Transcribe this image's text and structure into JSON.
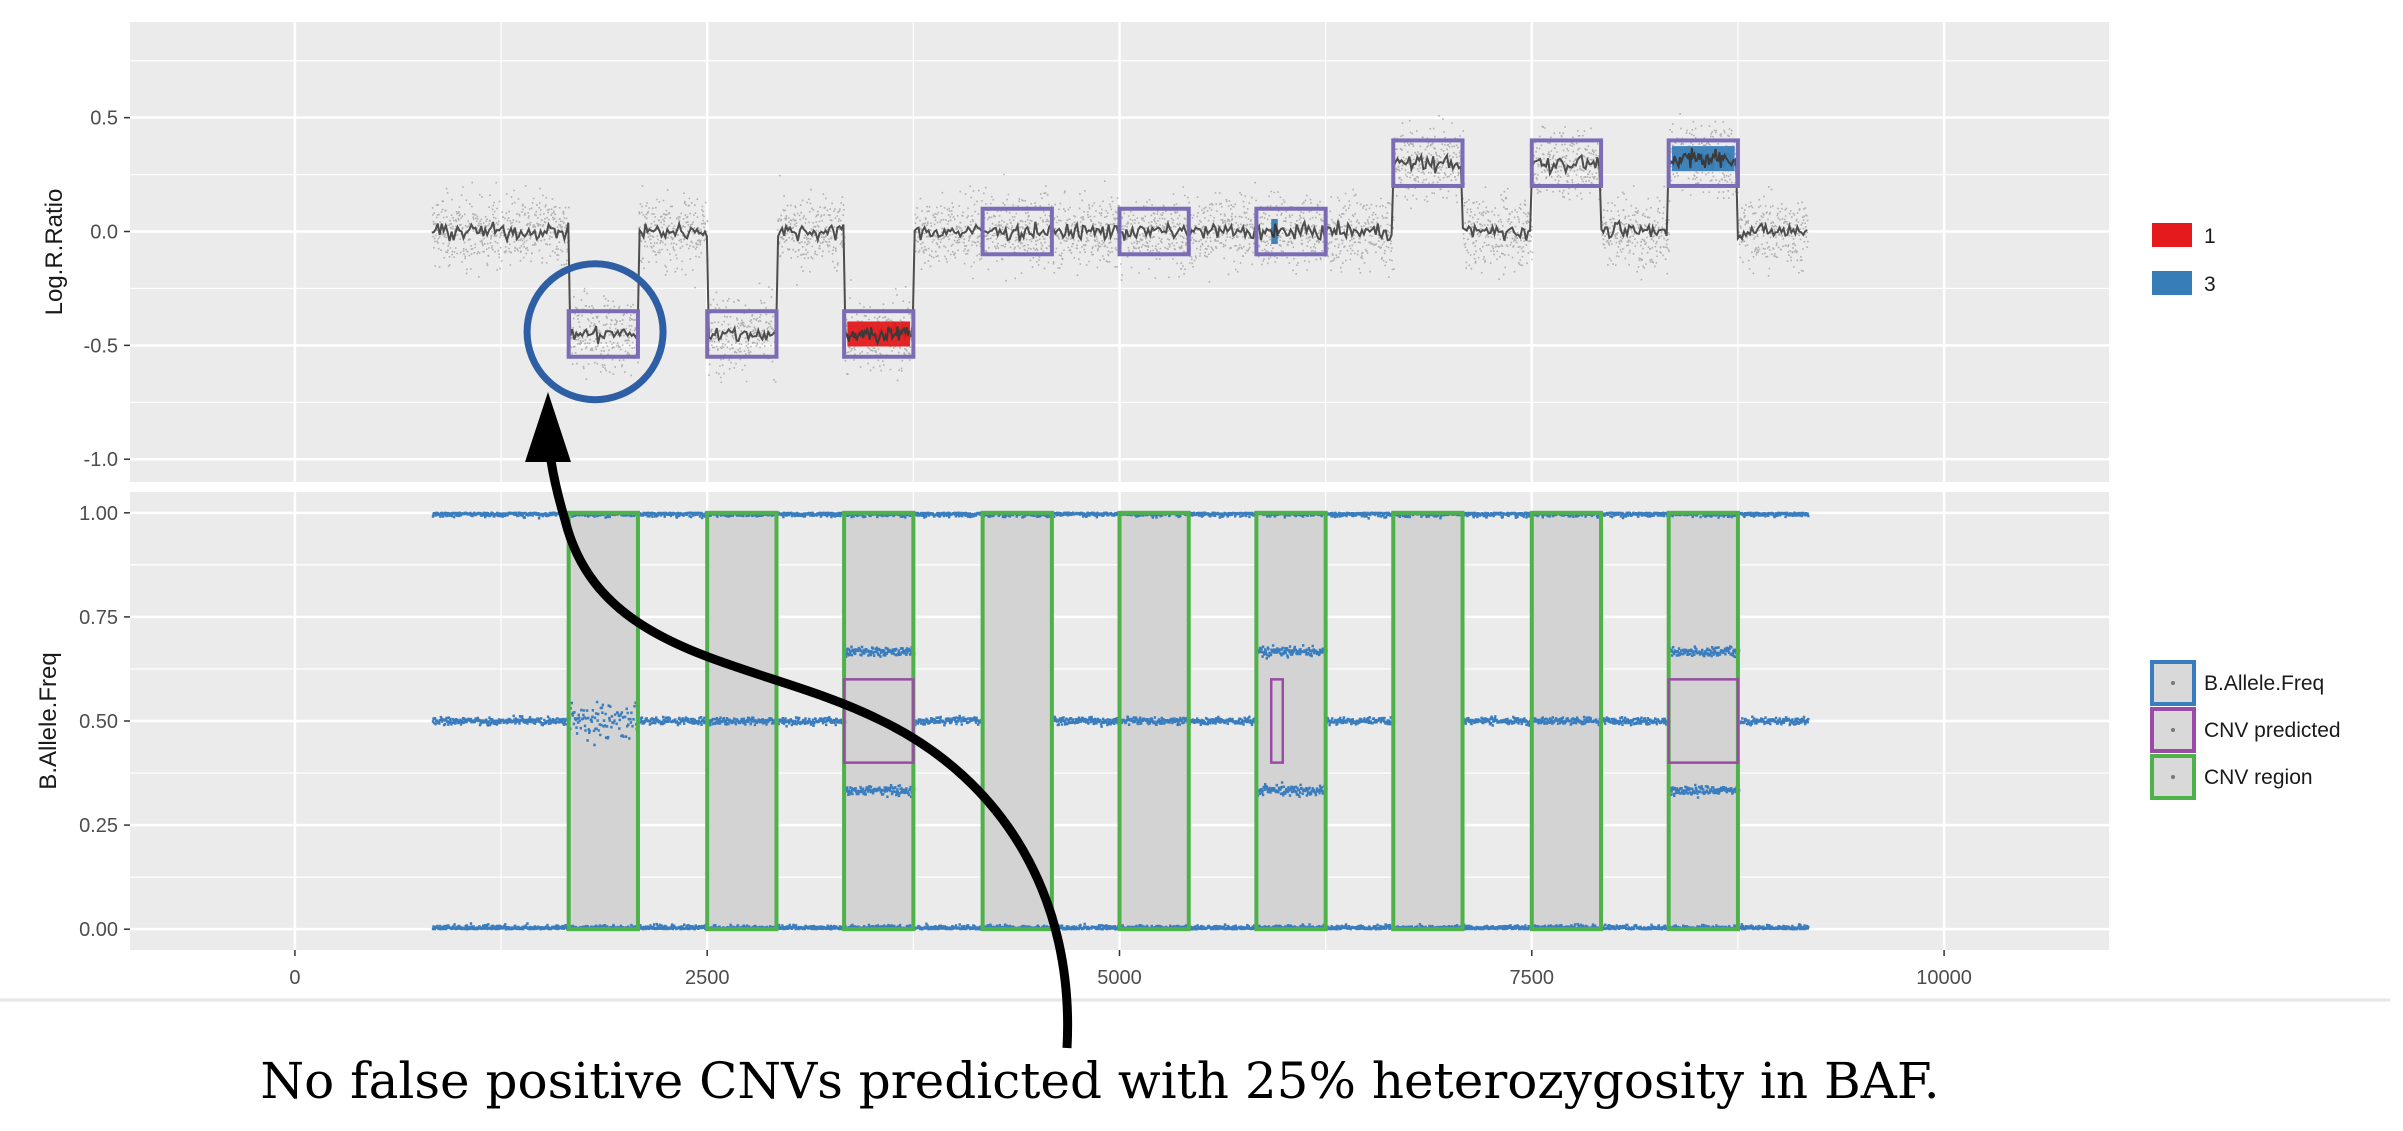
{
  "caption": "No false positive CNVs predicted with 25% heterozygosity in BAF.",
  "colors": {
    "panel_bg": "#ebebeb",
    "grid": "#ffffff",
    "points_lrr": "#808080",
    "lrr_line": "#4d4d4d",
    "cnv_predicted": "#7b6cb5",
    "cnv_region": "#4fb14a",
    "baf_points": "#3a7dbf",
    "state_1": "#e41a1c",
    "state_3": "#377eb8",
    "circle": "#2e5fa5",
    "arrow": "#000000"
  },
  "chart_data": [
    {
      "type": "scatter",
      "panel": "top",
      "ylabel": "Log.R.Ratio",
      "xlim": [
        -1000,
        11000
      ],
      "ylim": [
        -1.1,
        0.92
      ],
      "x_ticks": [
        0,
        2500,
        5000,
        7500,
        10000
      ],
      "y_ticks": [
        0.5,
        0.0,
        -0.5,
        -1.0
      ],
      "y_tick_labels": [
        "0.5",
        "0.0",
        "-0.5",
        "-1.0"
      ],
      "data_range_x": [
        830,
        9170
      ],
      "segments": [
        {
          "x0": 830,
          "x1": 1660,
          "lrr": 0.0
        },
        {
          "x0": 1660,
          "x1": 2080,
          "lrr": -0.45
        },
        {
          "x0": 2080,
          "x1": 2500,
          "lrr": 0.0
        },
        {
          "x0": 2500,
          "x1": 2920,
          "lrr": -0.45
        },
        {
          "x0": 2920,
          "x1": 3330,
          "lrr": 0.0
        },
        {
          "x0": 3330,
          "x1": 3750,
          "lrr": -0.45
        },
        {
          "x0": 3750,
          "x1": 6660,
          "lrr": 0.0
        },
        {
          "x0": 6660,
          "x1": 7080,
          "lrr": 0.3
        },
        {
          "x0": 7080,
          "x1": 7500,
          "lrr": 0.0
        },
        {
          "x0": 7500,
          "x1": 7920,
          "lrr": 0.3
        },
        {
          "x0": 7920,
          "x1": 8330,
          "lrr": 0.0
        },
        {
          "x0": 8330,
          "x1": 8750,
          "lrr": 0.32
        },
        {
          "x0": 8750,
          "x1": 9170,
          "lrr": 0.0
        }
      ],
      "cnv_predicted_boxes": [
        {
          "x0": 1660,
          "x1": 2080,
          "y0": -0.55,
          "y1": -0.35
        },
        {
          "x0": 2500,
          "x1": 2920,
          "y0": -0.55,
          "y1": -0.35
        },
        {
          "x0": 3330,
          "x1": 3750,
          "y0": -0.55,
          "y1": -0.35
        },
        {
          "x0": 4170,
          "x1": 4590,
          "y0": -0.1,
          "y1": 0.1
        },
        {
          "x0": 5000,
          "x1": 5420,
          "y0": -0.1,
          "y1": 0.1
        },
        {
          "x0": 5830,
          "x1": 6250,
          "y0": -0.1,
          "y1": 0.1
        },
        {
          "x0": 6660,
          "x1": 7080,
          "y0": 0.2,
          "y1": 0.4
        },
        {
          "x0": 7500,
          "x1": 7920,
          "y0": 0.2,
          "y1": 0.4
        },
        {
          "x0": 8330,
          "x1": 8750,
          "y0": 0.2,
          "y1": 0.4
        }
      ],
      "state_highlights": [
        {
          "state": "1",
          "x0": 3350,
          "x1": 3730,
          "y": -0.45
        },
        {
          "state": "3",
          "x0": 5920,
          "x1": 5960,
          "y": 0.0
        },
        {
          "state": "3",
          "x0": 8350,
          "x1": 8730,
          "y": 0.32
        }
      ],
      "legend": [
        "1",
        "3"
      ],
      "annotation_circle": {
        "x": 1820,
        "y": -0.44
      }
    },
    {
      "type": "scatter",
      "panel": "bottom",
      "ylabel": "B.Allele.Freq",
      "xlim": [
        -1000,
        11000
      ],
      "ylim": [
        -0.05,
        1.05
      ],
      "x_ticks": [
        0,
        2500,
        5000,
        7500,
        10000
      ],
      "x_tick_labels": [
        "0",
        "2500",
        "5000",
        "7500",
        "10000"
      ],
      "y_ticks": [
        1.0,
        0.75,
        0.5,
        0.25,
        0.0
      ],
      "y_tick_labels": [
        "1.00",
        "0.75",
        "0.50",
        "0.25",
        "0.00"
      ],
      "data_range_x": [
        830,
        9170
      ],
      "cnv_regions": [
        {
          "x0": 1660,
          "x1": 2080,
          "het": "scatter"
        },
        {
          "x0": 2500,
          "x1": 2920,
          "het": "0.5"
        },
        {
          "x0": 3330,
          "x1": 3750,
          "het": "split"
        },
        {
          "x0": 4170,
          "x1": 4590,
          "het": "none"
        },
        {
          "x0": 5000,
          "x1": 5420,
          "het": "0.5"
        },
        {
          "x0": 5830,
          "x1": 6250,
          "het": "split"
        },
        {
          "x0": 6660,
          "x1": 7080,
          "het": "none"
        },
        {
          "x0": 7500,
          "x1": 7920,
          "het": "0.5"
        },
        {
          "x0": 8330,
          "x1": 8750,
          "het": "split"
        }
      ],
      "cnv_predicted_boxes": [
        {
          "x0": 3330,
          "x1": 3750,
          "y0": 0.4,
          "y1": 0.6
        },
        {
          "x0": 5920,
          "x1": 5990,
          "y0": 0.4,
          "y1": 0.6
        },
        {
          "x0": 8330,
          "x1": 8750,
          "y0": 0.4,
          "y1": 0.6
        }
      ],
      "legend": [
        "B.Allele.Freq",
        "CNV predicted",
        "CNV region"
      ]
    }
  ]
}
